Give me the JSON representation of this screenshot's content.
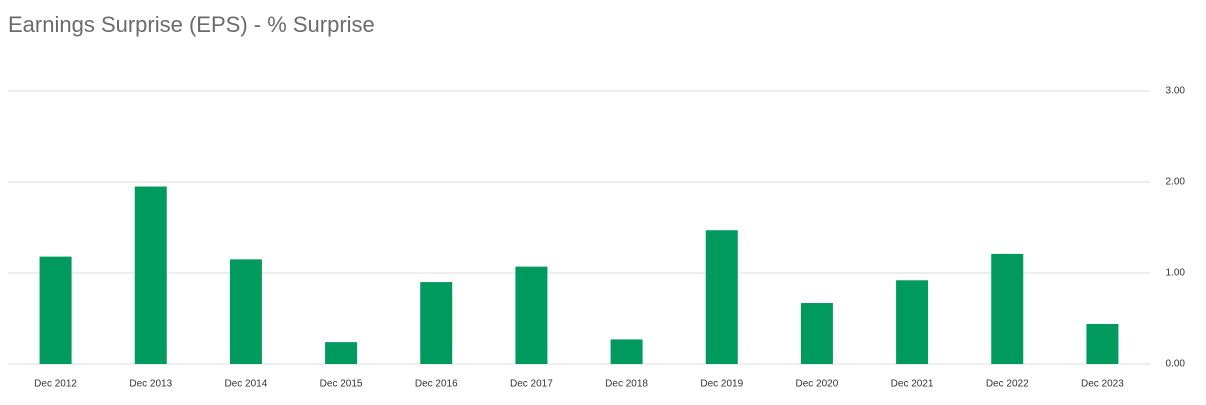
{
  "chart_data": {
    "type": "bar",
    "title": "Earnings Surprise (EPS) - % Surprise",
    "categories": [
      "Dec 2012",
      "Dec 2013",
      "Dec 2014",
      "Dec 2015",
      "Dec 2016",
      "Dec 2017",
      "Dec 2018",
      "Dec 2019",
      "Dec 2020",
      "Dec 2021",
      "Dec 2022",
      "Dec 2023"
    ],
    "values": [
      1.18,
      1.95,
      1.15,
      0.24,
      0.9,
      1.07,
      0.27,
      1.47,
      0.67,
      0.92,
      1.21,
      0.44
    ],
    "color": "#009a5e",
    "ylim": [
      0,
      3
    ],
    "yticks": [
      {
        "value": 0,
        "label": "0.00"
      },
      {
        "value": 1,
        "label": "1.00"
      },
      {
        "value": 2,
        "label": "2.00"
      },
      {
        "value": 3,
        "label": "3.00"
      }
    ],
    "grid": true
  }
}
